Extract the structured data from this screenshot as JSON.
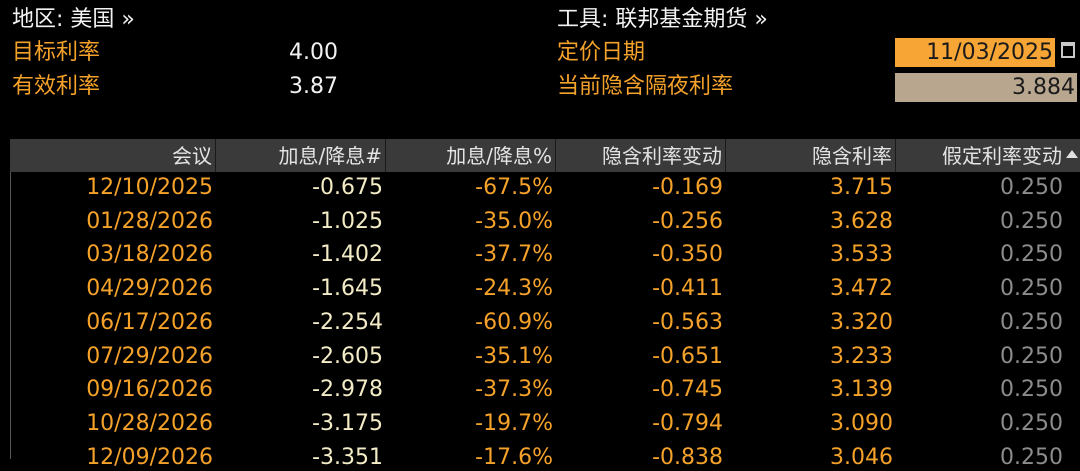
{
  "header": {
    "region": "地区: 美国 »",
    "instrument": "工具: 联邦基金期货 »",
    "target_rate": {
      "label": "目标利率",
      "value": "4.00"
    },
    "effective_rate": {
      "label": "有效利率",
      "value": "3.87"
    },
    "pricing_date": {
      "label": "定价日期",
      "value": "11/03/2025"
    },
    "implied_overnight_rate": {
      "label": "当前隐含隔夜利率",
      "value": "3.884"
    }
  },
  "table": {
    "columns": [
      "会议",
      "加息/降息#",
      "加息/降息%",
      "隐含利率变动",
      "隐含利率",
      "假定利率变动"
    ],
    "rows": [
      [
        "12/10/2025",
        "-0.675",
        "-67.5%",
        "-0.169",
        "3.715",
        "0.250"
      ],
      [
        "01/28/2026",
        "-1.025",
        "-35.0%",
        "-0.256",
        "3.628",
        "0.250"
      ],
      [
        "03/18/2026",
        "-1.402",
        "-37.7%",
        "-0.350",
        "3.533",
        "0.250"
      ],
      [
        "04/29/2026",
        "-1.645",
        "-24.3%",
        "-0.411",
        "3.472",
        "0.250"
      ],
      [
        "06/17/2026",
        "-2.254",
        "-60.9%",
        "-0.563",
        "3.320",
        "0.250"
      ],
      [
        "07/29/2026",
        "-2.605",
        "-35.1%",
        "-0.651",
        "3.233",
        "0.250"
      ],
      [
        "09/16/2026",
        "-2.978",
        "-37.3%",
        "-0.745",
        "3.139",
        "0.250"
      ],
      [
        "10/28/2026",
        "-3.175",
        "-19.7%",
        "-0.794",
        "3.090",
        "0.250"
      ],
      [
        "12/09/2026",
        "-3.351",
        "-17.6%",
        "-0.838",
        "3.046",
        "0.250"
      ]
    ]
  }
}
